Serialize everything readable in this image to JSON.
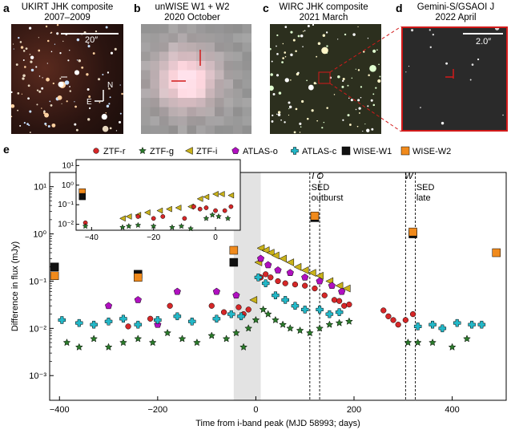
{
  "panels": {
    "a": {
      "letter": "a",
      "title1": "UKIRT JHK composite",
      "title2": "2007–2009",
      "scale": "20″",
      "compass_n": "N",
      "compass_e": "E"
    },
    "b": {
      "letter": "b",
      "title1": "unWISE W1 + W2",
      "title2": "2020 October"
    },
    "c": {
      "letter": "c",
      "title1": "WIRC JHK composite",
      "title2": "2021 March"
    },
    "d": {
      "letter": "d",
      "title1": "Gemini-S/GSAOI J",
      "title2": "2022 April",
      "scale": "2.0″"
    },
    "e": {
      "letter": "e"
    }
  },
  "legend": [
    {
      "label": "ZTF-r",
      "color": "#d62728",
      "marker": "circle"
    },
    {
      "label": "ZTF-g",
      "color": "#2a7a2a",
      "marker": "star"
    },
    {
      "label": "ZTF-i",
      "color": "#c9b21a",
      "marker": "triangle-left"
    },
    {
      "label": "ATLAS-o",
      "color": "#b010c0",
      "marker": "pentagon"
    },
    {
      "label": "ATLAS-c",
      "color": "#23b8c8",
      "marker": "cross"
    },
    {
      "label": "WISE-W1",
      "color": "#111111",
      "marker": "square"
    },
    {
      "label": "WISE-W2",
      "color": "#f08a1c",
      "marker": "square"
    }
  ],
  "annotations": {
    "io": "I O",
    "w": "W",
    "sed_outburst_1": "SED",
    "sed_outburst_2": "outburst",
    "sed_late_1": "SED",
    "sed_late_2": "late"
  },
  "chart_data": {
    "type": "scatter",
    "xlabel": "Time from i-band peak (MJD 58993; days)",
    "ylabel": "Difference in flux (mJy)",
    "xlim": [
      -420,
      510
    ],
    "ylim": [
      0.0003,
      20
    ],
    "yscale": "log",
    "x_ticks": [
      -400,
      -200,
      0,
      200,
      400
    ],
    "x_tick_labels": [
      "−400",
      "−200",
      "0",
      "200",
      "400"
    ],
    "y_ticks": [
      0.001,
      0.01,
      0.1,
      1,
      10
    ],
    "y_tick_labels": [
      "10⁻³",
      "10⁻²",
      "10⁻¹",
      "10⁰",
      "10¹"
    ],
    "shaded_region": [
      -45,
      10
    ],
    "vertical_lines": [
      110,
      130,
      305,
      325
    ],
    "series": [
      {
        "name": "ZTF-r",
        "color": "#d62728",
        "marker": "circle",
        "points": [
          [
            -260,
            0.011
          ],
          [
            -215,
            0.016
          ],
          [
            -175,
            0.03
          ],
          [
            -90,
            0.03
          ],
          [
            -65,
            0.022
          ],
          [
            -35,
            0.028
          ],
          [
            -25,
            0.02
          ],
          [
            -15,
            0.025
          ],
          [
            10,
            0.12
          ],
          [
            20,
            0.14
          ],
          [
            30,
            0.12
          ],
          [
            45,
            0.1
          ],
          [
            60,
            0.09
          ],
          [
            80,
            0.085
          ],
          [
            100,
            0.08
          ],
          [
            120,
            0.07
          ],
          [
            140,
            0.05
          ],
          [
            160,
            0.04
          ],
          [
            170,
            0.038
          ],
          [
            180,
            0.03
          ],
          [
            190,
            0.032
          ],
          [
            260,
            0.024
          ],
          [
            270,
            0.018
          ],
          [
            280,
            0.015
          ],
          [
            290,
            0.012
          ],
          [
            305,
            0.015
          ],
          [
            320,
            0.02
          ]
        ]
      },
      {
        "name": "ZTF-g",
        "color": "#2a7a2a",
        "marker": "star",
        "points": [
          [
            -385,
            0.005
          ],
          [
            -360,
            0.004
          ],
          [
            -330,
            0.006
          ],
          [
            -300,
            0.004
          ],
          [
            -270,
            0.005
          ],
          [
            -240,
            0.006
          ],
          [
            -210,
            0.005
          ],
          [
            -180,
            0.008
          ],
          [
            -150,
            0.006
          ],
          [
            -120,
            0.005
          ],
          [
            -90,
            0.007
          ],
          [
            -60,
            0.006
          ],
          [
            -40,
            0.008
          ],
          [
            -25,
            0.004
          ],
          [
            -15,
            0.01
          ],
          [
            0,
            0.015
          ],
          [
            15,
            0.025
          ],
          [
            25,
            0.02
          ],
          [
            40,
            0.015
          ],
          [
            55,
            0.012
          ],
          [
            70,
            0.01
          ],
          [
            90,
            0.009
          ],
          [
            110,
            0.008
          ],
          [
            130,
            0.01
          ],
          [
            150,
            0.012
          ],
          [
            170,
            0.013
          ],
          [
            190,
            0.014
          ],
          [
            310,
            0.005
          ],
          [
            330,
            0.005
          ],
          [
            360,
            0.005
          ],
          [
            400,
            0.004
          ],
          [
            430,
            0.006
          ]
        ]
      },
      {
        "name": "ZTF-i",
        "color": "#c9b21a",
        "marker": "triangle-left",
        "points": [
          [
            -5,
            0.04
          ],
          [
            5,
            0.25
          ],
          [
            10,
            0.5
          ],
          [
            20,
            0.45
          ],
          [
            30,
            0.4
          ],
          [
            40,
            0.35
          ],
          [
            55,
            0.3
          ],
          [
            70,
            0.25
          ],
          [
            85,
            0.2
          ],
          [
            100,
            0.17
          ],
          [
            115,
            0.15
          ],
          [
            130,
            0.13
          ],
          [
            150,
            0.1
          ],
          [
            170,
            0.08
          ],
          [
            185,
            0.07
          ]
        ]
      },
      {
        "name": "ATLAS-o",
        "color": "#b010c0",
        "marker": "pentagon",
        "points": [
          [
            -300,
            0.03
          ],
          [
            -240,
            0.04
          ],
          [
            -200,
            0.012
          ],
          [
            -160,
            0.06
          ],
          [
            -80,
            0.06
          ],
          [
            -40,
            0.05
          ],
          [
            10,
            0.3
          ],
          [
            25,
            0.22
          ],
          [
            45,
            0.17
          ],
          [
            70,
            0.15
          ],
          [
            100,
            0.12
          ],
          [
            130,
            0.1
          ],
          [
            155,
            0.08
          ],
          [
            175,
            0.06
          ]
        ]
      },
      {
        "name": "ATLAS-c",
        "color": "#23b8c8",
        "marker": "cross",
        "points": [
          [
            -395,
            0.015
          ],
          [
            -360,
            0.013
          ],
          [
            -330,
            0.012
          ],
          [
            -300,
            0.014
          ],
          [
            -270,
            0.016
          ],
          [
            -240,
            0.012
          ],
          [
            -200,
            0.015
          ],
          [
            -160,
            0.018
          ],
          [
            -130,
            0.014
          ],
          [
            -80,
            0.016
          ],
          [
            -50,
            0.02
          ],
          [
            -30,
            0.018
          ],
          [
            5,
            0.12
          ],
          [
            20,
            0.09
          ],
          [
            40,
            0.05
          ],
          [
            60,
            0.04
          ],
          [
            80,
            0.03
          ],
          [
            100,
            0.025
          ],
          [
            130,
            0.025
          ],
          [
            150,
            0.02
          ],
          [
            170,
            0.022
          ],
          [
            330,
            0.011
          ],
          [
            360,
            0.012
          ],
          [
            380,
            0.01
          ],
          [
            410,
            0.013
          ],
          [
            440,
            0.012
          ],
          [
            460,
            0.012
          ]
        ]
      },
      {
        "name": "WISE-W1",
        "color": "#111111",
        "marker": "square",
        "points": [
          [
            -410,
            0.2
          ],
          [
            -240,
            0.14
          ],
          [
            -45,
            0.25
          ],
          [
            120,
            2.2
          ],
          [
            320,
            1.0
          ]
        ]
      },
      {
        "name": "WISE-W2",
        "color": "#f08a1c",
        "marker": "square",
        "points": [
          [
            -410,
            0.13
          ],
          [
            -240,
            0.12
          ],
          [
            -45,
            0.45
          ],
          [
            120,
            2.4
          ],
          [
            320,
            1.1
          ],
          [
            490,
            0.4
          ]
        ]
      }
    ],
    "inset": {
      "xlim": [
        -45,
        8
      ],
      "ylim": [
        0.005,
        20
      ],
      "yscale": "log",
      "x_ticks": [
        -40,
        -20,
        0
      ],
      "x_tick_labels": [
        "−40",
        "−20",
        "0"
      ],
      "y_ticks": [
        0.01,
        0.1,
        1,
        10
      ],
      "y_tick_labels": [
        "10⁻²",
        "10⁻¹",
        "10⁰",
        "10¹"
      ],
      "series": [
        {
          "name": "WISE-W2",
          "points": [
            [
              -43,
              0.45
            ]
          ]
        },
        {
          "name": "WISE-W1",
          "points": [
            [
              -43,
              0.26
            ]
          ]
        },
        {
          "name": "ZTF-i",
          "points": [
            [
              -30,
              0.02
            ],
            [
              -28,
              0.025
            ],
            [
              -25,
              0.03
            ],
            [
              -22,
              0.04
            ],
            [
              -18,
              0.05
            ],
            [
              -15,
              0.06
            ],
            [
              -12,
              0.07
            ],
            [
              -8,
              0.08
            ],
            [
              -5,
              0.2
            ],
            [
              -3,
              0.25
            ],
            [
              0,
              0.35
            ],
            [
              2,
              0.35
            ],
            [
              5,
              0.3
            ]
          ]
        },
        {
          "name": "ZTF-r",
          "points": [
            [
              -42,
              0.012
            ],
            [
              -25,
              0.025
            ],
            [
              -20,
              0.02
            ],
            [
              -17,
              0.025
            ],
            [
              -10,
              0.02
            ],
            [
              -7,
              0.08
            ],
            [
              -5,
              0.06
            ],
            [
              -3,
              0.07
            ],
            [
              0,
              0.05
            ],
            [
              3,
              0.05
            ],
            [
              5,
              0.08
            ]
          ]
        },
        {
          "name": "ZTF-g",
          "points": [
            [
              -42,
              0.008
            ],
            [
              -30,
              0.007
            ],
            [
              -28,
              0.008
            ],
            [
              -25,
              0.009
            ],
            [
              -20,
              0.008
            ],
            [
              -14,
              0.007
            ],
            [
              -11,
              0.008
            ],
            [
              -8,
              0.006
            ],
            [
              -3,
              0.02
            ],
            [
              -1,
              0.03
            ],
            [
              1,
              0.025
            ],
            [
              4,
              0.02
            ]
          ]
        }
      ]
    }
  }
}
